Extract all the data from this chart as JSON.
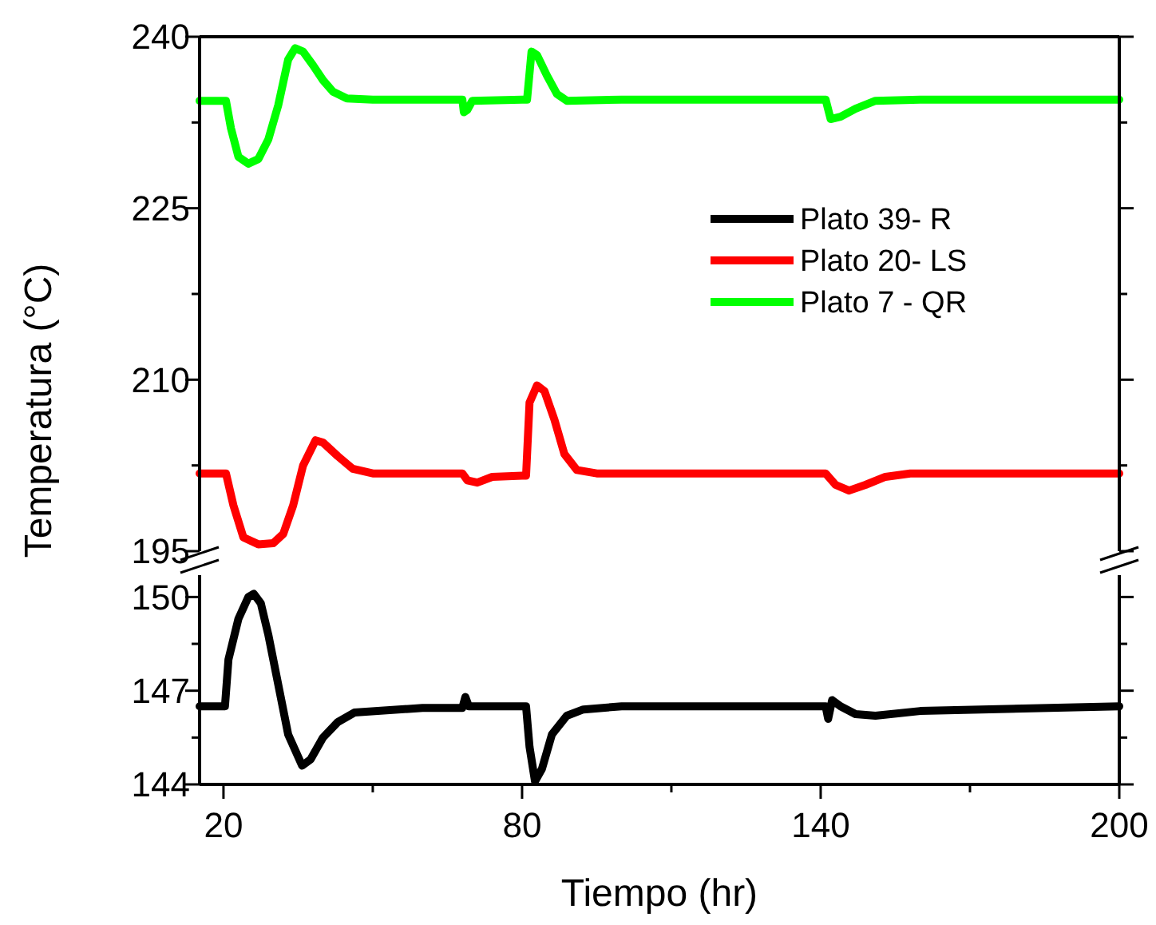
{
  "chart_data": [
    {
      "type": "line",
      "ylabel": "Temperatura (°C)",
      "xlim": [
        15.2,
        200
      ],
      "ylim": [
        195,
        240
      ],
      "yticks": [
        195,
        {
          "value": 202.5,
          "label": null
        },
        210,
        {
          "value": 217.5,
          "label": null
        },
        225,
        {
          "value": 232.5,
          "label": null
        },
        240
      ],
      "tick_labels": "y",
      "legend": "right",
      "grid": false,
      "marker": "none",
      "line_style": "solid",
      "series": [
        {
          "name": "Plato 20- LS",
          "color": "#ff0000",
          "x": [
            15.2,
            20.5,
            22,
            24,
            27,
            30,
            32,
            34,
            36,
            38.5,
            40,
            43,
            46,
            50,
            68,
            69,
            71,
            74,
            80,
            80.8,
            81.5,
            83,
            84.5,
            86.5,
            88.5,
            91,
            95,
            141,
            143,
            145.7,
            149,
            153,
            158,
            200
          ],
          "values": [
            201.8,
            201.8,
            199,
            196.2,
            195.6,
            195.7,
            196.5,
            199,
            202.5,
            204.7,
            204.5,
            203.3,
            202.2,
            201.8,
            201.8,
            201.2,
            201,
            201.5,
            201.6,
            201.6,
            208,
            209.5,
            209,
            206.5,
            203.5,
            202.1,
            201.8,
            201.8,
            200.8,
            200.3,
            200.8,
            201.5,
            201.8,
            201.8
          ]
        },
        {
          "name": "Plato 7 - QR",
          "color": "#00ff00",
          "x": [
            15.2,
            20,
            20.5,
            21.5,
            23,
            25,
            27,
            29,
            31,
            33,
            34.4,
            36,
            38,
            40,
            42,
            44.8,
            50,
            68,
            68.3,
            69,
            70,
            80,
            81,
            81.9,
            83,
            85,
            87,
            89,
            100,
            141,
            142,
            144,
            147,
            151,
            160,
            200
          ],
          "values": [
            234.4,
            234.4,
            234.4,
            232,
            229.5,
            228.9,
            229.3,
            231,
            234,
            238,
            239,
            238.7,
            237.5,
            236.2,
            235.2,
            234.6,
            234.5,
            234.5,
            233.4,
            233.6,
            234.4,
            234.5,
            234.5,
            238.7,
            238.4,
            236.6,
            235,
            234.4,
            234.5,
            234.5,
            232.8,
            233,
            233.7,
            234.4,
            234.5,
            234.5
          ]
        }
      ]
    },
    {
      "type": "line",
      "xlabel": "Tiempo (hr)",
      "xlim": [
        15.2,
        200
      ],
      "ylim": [
        144,
        150.7
      ],
      "yticks": [
        144,
        {
          "value": 145.5,
          "label": null
        },
        147,
        {
          "value": 148.5,
          "label": null
        },
        150
      ],
      "xticks": [
        20,
        {
          "value": 50,
          "label": null
        },
        80,
        {
          "value": 110,
          "label": null
        },
        140,
        {
          "value": 170,
          "label": null
        },
        200
      ],
      "grid": false,
      "marker": "none",
      "line_style": "solid",
      "series": [
        {
          "name": "Plato 39- R",
          "color": "#000000",
          "x": [
            15.2,
            20.3,
            21,
            23,
            25,
            26.1,
            27.5,
            29,
            31,
            33,
            35.8,
            37.5,
            40,
            43,
            46.3,
            60,
            68,
            68.6,
            69.3,
            80,
            80.8,
            81.5,
            82.6,
            84,
            86,
            89,
            92.3,
            100,
            141,
            141.5,
            142.3,
            144,
            147,
            151,
            160,
            200
          ],
          "values": [
            146.5,
            146.5,
            148,
            149.3,
            150,
            150.1,
            149.8,
            148.8,
            147.2,
            145.6,
            144.6,
            144.8,
            145.5,
            146,
            146.3,
            146.45,
            146.45,
            146.8,
            146.5,
            146.5,
            146.5,
            145.2,
            144.1,
            144.5,
            145.6,
            146.2,
            146.4,
            146.5,
            146.5,
            146.1,
            146.7,
            146.5,
            146.25,
            146.2,
            146.35,
            146.5
          ]
        }
      ]
    }
  ]
}
